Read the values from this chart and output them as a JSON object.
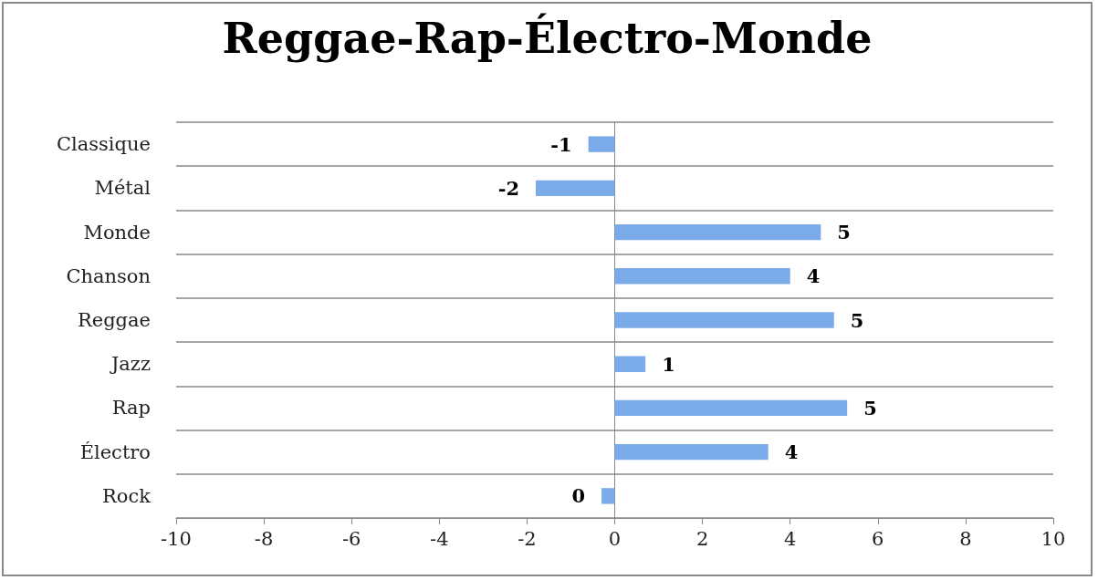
{
  "chart_data": {
    "type": "bar",
    "orientation": "horizontal",
    "title": "Reggae-Rap-Électro-Monde",
    "categories": [
      "Classique",
      "Métal",
      "Monde",
      "Chanson",
      "Reggae",
      "Jazz",
      "Rap",
      "Électro",
      "Rock"
    ],
    "values": [
      -0.6,
      -1.8,
      4.7,
      4.0,
      5.0,
      0.7,
      5.3,
      3.5,
      -0.3
    ],
    "value_labels": [
      "-1",
      "-2",
      "5",
      "4",
      "5",
      "1",
      "5",
      "4",
      "0"
    ],
    "color": "#7aaae8",
    "xlim": [
      -10,
      10
    ],
    "xticks": [
      -10,
      -8,
      -6,
      -4,
      -2,
      0,
      2,
      4,
      6,
      8,
      10
    ],
    "grid": "y"
  }
}
